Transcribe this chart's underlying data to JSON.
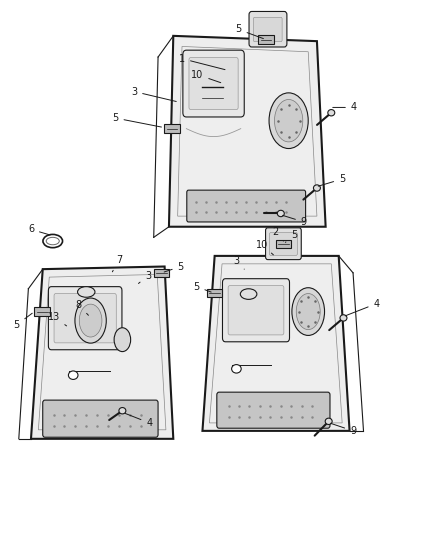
{
  "background_color": "#ffffff",
  "line_color": "#1a1a1a",
  "figsize": [
    4.38,
    5.33
  ],
  "dpi": 100
}
